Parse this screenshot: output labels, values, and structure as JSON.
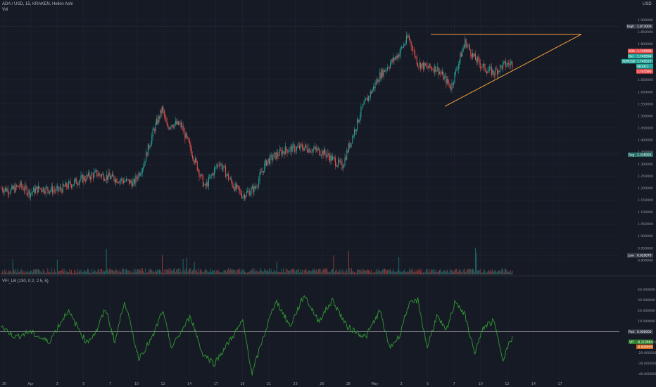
{
  "header": {
    "symbol": "ADA / USD, 15, KRAKEN, Heikin Ashi",
    "vol_label": "Vol",
    "currency": "USD",
    "indicator_label": "VFI_LB (130, 0.2, 2.5, 5)"
  },
  "colors": {
    "background": "#161a25",
    "grid": "#232734",
    "up": "#26a69a",
    "down": "#ef5350",
    "pattern": "#f7a23b",
    "vfi_line": "#2f9c2f",
    "zero_line": "#c9c9c9",
    "axis_text": "#9598a1"
  },
  "chart_data": [
    {
      "type": "candlestick",
      "title": "ADA / USD, 15, KRAKEN, Heikin Ashi",
      "y_ticks": [
        "1.900000",
        "1.850000",
        "1.800000",
        "1.750000",
        "1.700000",
        "1.650000",
        "1.600000",
        "1.550000",
        "1.500000",
        "1.450000",
        "1.400000",
        "1.350000",
        "1.300000",
        "1.250000",
        "1.200000",
        "1.150000",
        "1.100000",
        "1.050000",
        "1.000000",
        "0.950000",
        "0.900000"
      ],
      "ylim": [
        0.87,
        1.93
      ],
      "x_ticks": [
        "30",
        "Apr",
        "3",
        "5",
        "7",
        "10",
        "12",
        "14",
        "17",
        "19",
        "21",
        "23",
        "26",
        "28",
        "May",
        "3",
        "5",
        "7",
        "10",
        "12",
        "14",
        "17"
      ],
      "series": [
        {
          "name": "ADA/USD",
          "anchor_index": [
            0,
            10,
            20,
            30,
            40,
            60,
            80,
            100,
            120,
            140,
            150,
            160,
            170,
            175,
            180,
            190,
            205,
            215,
            230,
            245,
            255,
            268,
            280,
            300,
            320,
            340,
            360,
            380,
            400,
            420,
            430,
            440,
            450,
            460,
            475,
            490,
            500,
            510,
            520,
            530,
            540
          ],
          "anchor_close": [
            1.2,
            1.19,
            1.21,
            1.18,
            1.2,
            1.19,
            1.23,
            1.26,
            1.24,
            1.22,
            1.3,
            1.43,
            1.53,
            1.45,
            1.47,
            1.46,
            1.31,
            1.2,
            1.31,
            1.21,
            1.17,
            1.2,
            1.31,
            1.36,
            1.37,
            1.35,
            1.29,
            1.52,
            1.67,
            1.76,
            1.83,
            1.72,
            1.7,
            1.7,
            1.62,
            1.81,
            1.74,
            1.7,
            1.68,
            1.71,
            1.72
          ]
        }
      ],
      "high_label": "High",
      "high_value": "1.873000",
      "low_label": "Low",
      "low_value": "0.920070",
      "avg_label": "Avg",
      "avg_value": "1.338994",
      "price_tags": [
        {
          "label": "ADA",
          "value": "1.749998",
          "color": "#ef5350"
        },
        {
          "label": "Bid",
          "value": "1.749594",
          "color": "#26a69a"
        },
        {
          "label": "ADAUSD",
          "value": "1.749527",
          "color": "#26a69a"
        },
        {
          "label": "",
          "value": "08:49:1",
          "color": "#26a69a"
        },
        {
          "label": "",
          "value": "1.741580",
          "color": "#ef5350"
        }
      ],
      "triangle_pattern": {
        "top_value": 1.84,
        "bottom_start_value": 1.54,
        "apex_value": 1.84
      }
    },
    {
      "type": "line",
      "name": "VFI_LB (130, 0.2, 2.5, 5)",
      "y_ticks": [
        "40.000000",
        "30.000000",
        "20.000000",
        "10.000000",
        "0.000000",
        "-10.000000",
        "-20.000000",
        "-30.000000",
        "-40.000000"
      ],
      "ylim": [
        -43,
        45
      ],
      "series": [
        {
          "name": "VFI",
          "anchor_index": [
            0,
            15,
            30,
            50,
            70,
            90,
            100,
            110,
            120,
            130,
            145,
            160,
            170,
            180,
            200,
            212,
            225,
            240,
            255,
            265,
            275,
            290,
            305,
            320,
            335,
            350,
            365,
            385,
            400,
            410,
            420,
            430,
            440,
            450,
            460,
            470,
            480,
            490,
            500,
            510,
            520,
            530,
            540
          ],
          "anchor_value": [
            5,
            -5,
            0,
            -10,
            20,
            -10,
            0,
            22,
            -10,
            30,
            -25,
            -5,
            20,
            -15,
            15,
            -20,
            -30,
            -10,
            10,
            -40,
            -10,
            30,
            5,
            35,
            10,
            30,
            5,
            -5,
            20,
            -15,
            -5,
            25,
            30,
            -15,
            15,
            0,
            30,
            15,
            -20,
            5,
            10,
            -25,
            -5
          ]
        }
      ],
      "posi_label": "Posi",
      "posi_value": "0.000000",
      "vfi_label": "VFI",
      "vfi_value": "-8.210664",
      "extra_value": "-9.849999"
    }
  ]
}
